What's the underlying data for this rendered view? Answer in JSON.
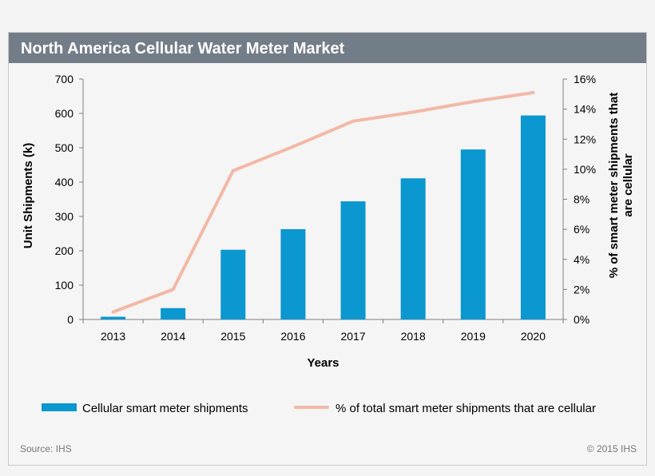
{
  "header": {
    "title": "North America Cellular Water Meter Market"
  },
  "footer": {
    "source": "Source: IHS",
    "copyright": "© 2015 IHS"
  },
  "colors": {
    "bar": "#0b97cf",
    "line": "#f2b8a6",
    "title_bg": "#737d87"
  },
  "chart_data": {
    "type": "bar",
    "categories": [
      "2013",
      "2014",
      "2015",
      "2016",
      "2017",
      "2018",
      "2019",
      "2020"
    ],
    "series": [
      {
        "name": "Cellular smart meter shipments",
        "type": "bar",
        "axis": "left",
        "values": [
          8,
          33,
          203,
          263,
          344,
          411,
          495,
          594
        ]
      },
      {
        "name": "% of total smart meter shipments that are cellular",
        "type": "line",
        "axis": "right",
        "values": [
          0.5,
          2.0,
          9.9,
          11.5,
          13.2,
          13.8,
          14.5,
          15.1
        ]
      }
    ],
    "xlabel": "Years",
    "ylabel": "Unit Shipments (k)",
    "y2label": "% of smart meter shipments that are cellular",
    "ylim": [
      0,
      700
    ],
    "y2lim": [
      0,
      16
    ],
    "yticks": [
      "0",
      "100",
      "200",
      "300",
      "400",
      "500",
      "600",
      "700"
    ],
    "y2ticks": [
      "0%",
      "2%",
      "4%",
      "6%",
      "8%",
      "10%",
      "12%",
      "14%",
      "16%"
    ],
    "grid": false,
    "legend": "bottom"
  }
}
